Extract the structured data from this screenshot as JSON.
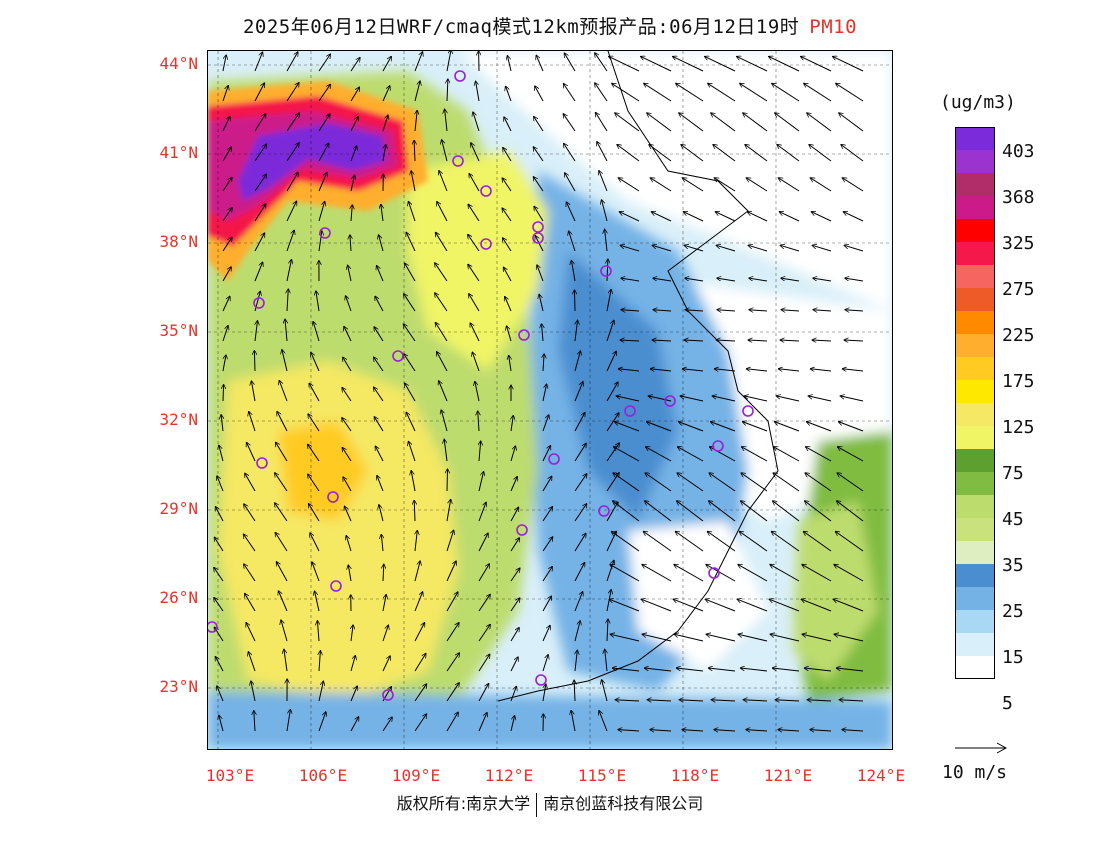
{
  "title": {
    "text": "2025年06月12日WRF/cmaq模式12km预报产品:06月12日19时",
    "pollutant": "PM10"
  },
  "map": {
    "latitude_labels": [
      "44°N",
      "41°N",
      "38°N",
      "35°N",
      "32°N",
      "29°N",
      "26°N",
      "23°N"
    ],
    "longitude_labels": [
      "103°E",
      "106°E",
      "109°E",
      "112°E",
      "115°E",
      "118°E",
      "121°E",
      "124°E"
    ],
    "extent": {
      "lon_min": 103,
      "lon_max": 124,
      "lat_min": 21,
      "lat_max": 44.5
    },
    "city_marker_color": "#9b1fd6"
  },
  "colorbar": {
    "unit": "(ug/m3)",
    "colors": [
      "#7b2bd9",
      "#9a33d0",
      "#b02d6a",
      "#cc1a8a",
      "#ff0000",
      "#f5184a",
      "#f76560",
      "#ee5a28",
      "#ff8a00",
      "#ffae2e",
      "#ffcb22",
      "#ffe800",
      "#f5e864",
      "#f0f566",
      "#5ea030",
      "#7fbc41",
      "#bddc6e",
      "#c9e27e",
      "#dfeec0",
      "#4b8ed0",
      "#74b2e6",
      "#a8d8f4",
      "#d9eff9",
      "#ffffff"
    ],
    "labels": [
      "403",
      "368",
      "325",
      "275",
      "225",
      "175",
      "125",
      "75",
      "45",
      "35",
      "25",
      "15",
      "5"
    ]
  },
  "wind_reference": {
    "label": "10 m/s"
  },
  "footer": {
    "left": "版权所有:南京大学",
    "right": "南京创蓝科技有限公司"
  }
}
